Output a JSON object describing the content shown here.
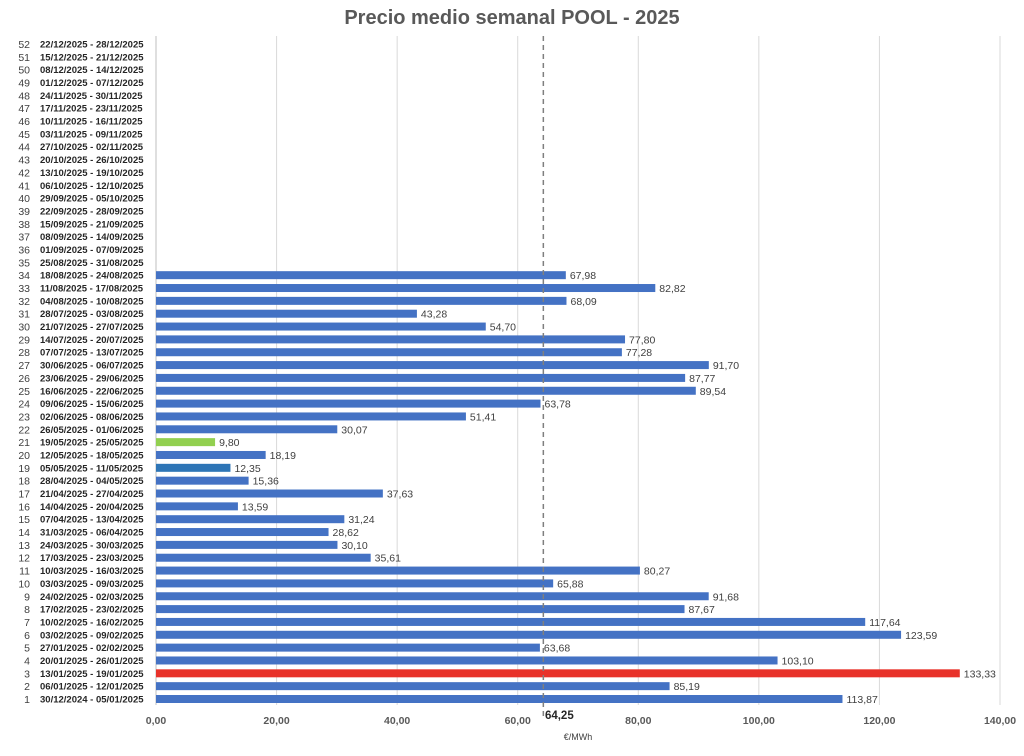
{
  "chart_data": {
    "type": "bar",
    "orientation": "horizontal",
    "title": "Precio medio semanal POOL - 2025",
    "xlabel": "€/MWh",
    "xlim": [
      0,
      140
    ],
    "x_ticks": [
      "0,00",
      "20,00",
      "40,00",
      "60,00",
      "80,00",
      "100,00",
      "120,00",
      "140,00"
    ],
    "grid": "vertical",
    "average": {
      "value": 64.25,
      "label": "64,25"
    },
    "colors": {
      "default": "#4472C4",
      "min": "#92D050",
      "max": "#E8322A",
      "highlight": "#2E75B6",
      "average_line": "#7F7F7F",
      "grid": "#D9D9D9"
    },
    "weeks": [
      {
        "num": "1",
        "dates": "30/12/2024 - 05/01/2025",
        "value": 113.87,
        "label": "113,87",
        "color": "#4472C4"
      },
      {
        "num": "2",
        "dates": "06/01/2025 - 12/01/2025",
        "value": 85.19,
        "label": "85,19",
        "color": "#4472C4"
      },
      {
        "num": "3",
        "dates": "13/01/2025 - 19/01/2025",
        "value": 133.33,
        "label": "133,33",
        "color": "#E8322A"
      },
      {
        "num": "4",
        "dates": "20/01/2025 - 26/01/2025",
        "value": 103.1,
        "label": "103,10",
        "color": "#4472C4"
      },
      {
        "num": "5",
        "dates": "27/01/2025 - 02/02/2025",
        "value": 63.68,
        "label": "63,68",
        "color": "#4472C4"
      },
      {
        "num": "6",
        "dates": "03/02/2025 - 09/02/2025",
        "value": 123.59,
        "label": "123,59",
        "color": "#4472C4"
      },
      {
        "num": "7",
        "dates": "10/02/2025 - 16/02/2025",
        "value": 117.64,
        "label": "117,64",
        "color": "#4472C4"
      },
      {
        "num": "8",
        "dates": "17/02/2025 - 23/02/2025",
        "value": 87.67,
        "label": "87,67",
        "color": "#4472C4"
      },
      {
        "num": "9",
        "dates": "24/02/2025 - 02/03/2025",
        "value": 91.68,
        "label": "91,68",
        "color": "#4472C4"
      },
      {
        "num": "10",
        "dates": "03/03/2025 - 09/03/2025",
        "value": 65.88,
        "label": "65,88",
        "color": "#4472C4"
      },
      {
        "num": "11",
        "dates": "10/03/2025 - 16/03/2025",
        "value": 80.27,
        "label": "80,27",
        "color": "#4472C4"
      },
      {
        "num": "12",
        "dates": "17/03/2025 - 23/03/2025",
        "value": 35.61,
        "label": "35,61",
        "color": "#4472C4"
      },
      {
        "num": "13",
        "dates": "24/03/2025 - 30/03/2025",
        "value": 30.1,
        "label": "30,10",
        "color": "#4472C4"
      },
      {
        "num": "14",
        "dates": "31/03/2025 - 06/04/2025",
        "value": 28.62,
        "label": "28,62",
        "color": "#4472C4"
      },
      {
        "num": "15",
        "dates": "07/04/2025 - 13/04/2025",
        "value": 31.24,
        "label": "31,24",
        "color": "#4472C4"
      },
      {
        "num": "16",
        "dates": "14/04/2025 - 20/04/2025",
        "value": 13.59,
        "label": "13,59",
        "color": "#4472C4"
      },
      {
        "num": "17",
        "dates": "21/04/2025 - 27/04/2025",
        "value": 37.63,
        "label": "37,63",
        "color": "#4472C4"
      },
      {
        "num": "18",
        "dates": "28/04/2025 - 04/05/2025",
        "value": 15.36,
        "label": "15,36",
        "color": "#4472C4"
      },
      {
        "num": "19",
        "dates": "05/05/2025 - 11/05/2025",
        "value": 12.35,
        "label": "12,35",
        "color": "#2E75B6"
      },
      {
        "num": "20",
        "dates": "12/05/2025 - 18/05/2025",
        "value": 18.19,
        "label": "18,19",
        "color": "#4472C4"
      },
      {
        "num": "21",
        "dates": "19/05/2025 - 25/05/2025",
        "value": 9.8,
        "label": "9,80",
        "color": "#92D050"
      },
      {
        "num": "22",
        "dates": "26/05/2025 - 01/06/2025",
        "value": 30.07,
        "label": "30,07",
        "color": "#4472C4"
      },
      {
        "num": "23",
        "dates": "02/06/2025 - 08/06/2025",
        "value": 51.41,
        "label": "51,41",
        "color": "#4472C4"
      },
      {
        "num": "24",
        "dates": "09/06/2025 - 15/06/2025",
        "value": 63.78,
        "label": "63,78",
        "color": "#4472C4"
      },
      {
        "num": "25",
        "dates": "16/06/2025 - 22/06/2025",
        "value": 89.54,
        "label": "89,54",
        "color": "#4472C4"
      },
      {
        "num": "26",
        "dates": "23/06/2025 - 29/06/2025",
        "value": 87.77,
        "label": "87,77",
        "color": "#4472C4"
      },
      {
        "num": "27",
        "dates": "30/06/2025 - 06/07/2025",
        "value": 91.7,
        "label": "91,70",
        "color": "#4472C4"
      },
      {
        "num": "28",
        "dates": "07/07/2025 - 13/07/2025",
        "value": 77.28,
        "label": "77,28",
        "color": "#4472C4"
      },
      {
        "num": "29",
        "dates": "14/07/2025 - 20/07/2025",
        "value": 77.8,
        "label": "77,80",
        "color": "#4472C4"
      },
      {
        "num": "30",
        "dates": "21/07/2025 - 27/07/2025",
        "value": 54.7,
        "label": "54,70",
        "color": "#4472C4"
      },
      {
        "num": "31",
        "dates": "28/07/2025 - 03/08/2025",
        "value": 43.28,
        "label": "43,28",
        "color": "#4472C4"
      },
      {
        "num": "32",
        "dates": "04/08/2025 - 10/08/2025",
        "value": 68.09,
        "label": "68,09",
        "color": "#4472C4"
      },
      {
        "num": "33",
        "dates": "11/08/2025 - 17/08/2025",
        "value": 82.82,
        "label": "82,82",
        "color": "#4472C4"
      },
      {
        "num": "34",
        "dates": "18/08/2025 - 24/08/2025",
        "value": 67.98,
        "label": "67,98",
        "color": "#4472C4"
      },
      {
        "num": "35",
        "dates": "25/08/2025 - 31/08/2025",
        "value": null,
        "label": "",
        "color": "#4472C4"
      },
      {
        "num": "36",
        "dates": "01/09/2025 - 07/09/2025",
        "value": null,
        "label": "",
        "color": "#4472C4"
      },
      {
        "num": "37",
        "dates": "08/09/2025 - 14/09/2025",
        "value": null,
        "label": "",
        "color": "#4472C4"
      },
      {
        "num": "38",
        "dates": "15/09/2025 - 21/09/2025",
        "value": null,
        "label": "",
        "color": "#4472C4"
      },
      {
        "num": "39",
        "dates": "22/09/2025 - 28/09/2025",
        "value": null,
        "label": "",
        "color": "#4472C4"
      },
      {
        "num": "40",
        "dates": "29/09/2025 - 05/10/2025",
        "value": null,
        "label": "",
        "color": "#4472C4"
      },
      {
        "num": "41",
        "dates": "06/10/2025 - 12/10/2025",
        "value": null,
        "label": "",
        "color": "#4472C4"
      },
      {
        "num": "42",
        "dates": "13/10/2025 - 19/10/2025",
        "value": null,
        "label": "",
        "color": "#4472C4"
      },
      {
        "num": "43",
        "dates": "20/10/2025 - 26/10/2025",
        "value": null,
        "label": "",
        "color": "#4472C4"
      },
      {
        "num": "44",
        "dates": "27/10/2025 - 02/11/2025",
        "value": null,
        "label": "",
        "color": "#4472C4"
      },
      {
        "num": "45",
        "dates": "03/11/2025 - 09/11/2025",
        "value": null,
        "label": "",
        "color": "#4472C4"
      },
      {
        "num": "46",
        "dates": "10/11/2025 - 16/11/2025",
        "value": null,
        "label": "",
        "color": "#4472C4"
      },
      {
        "num": "47",
        "dates": "17/11/2025 - 23/11/2025",
        "value": null,
        "label": "",
        "color": "#4472C4"
      },
      {
        "num": "48",
        "dates": "24/11/2025 - 30/11/2025",
        "value": null,
        "label": "",
        "color": "#4472C4"
      },
      {
        "num": "49",
        "dates": "01/12/2025 - 07/12/2025",
        "value": null,
        "label": "",
        "color": "#4472C4"
      },
      {
        "num": "50",
        "dates": "08/12/2025 - 14/12/2025",
        "value": null,
        "label": "",
        "color": "#4472C4"
      },
      {
        "num": "51",
        "dates": "15/12/2025 - 21/12/2025",
        "value": null,
        "label": "",
        "color": "#4472C4"
      },
      {
        "num": "52",
        "dates": "22/12/2025 - 28/12/2025",
        "value": null,
        "label": "",
        "color": "#4472C4"
      }
    ]
  }
}
